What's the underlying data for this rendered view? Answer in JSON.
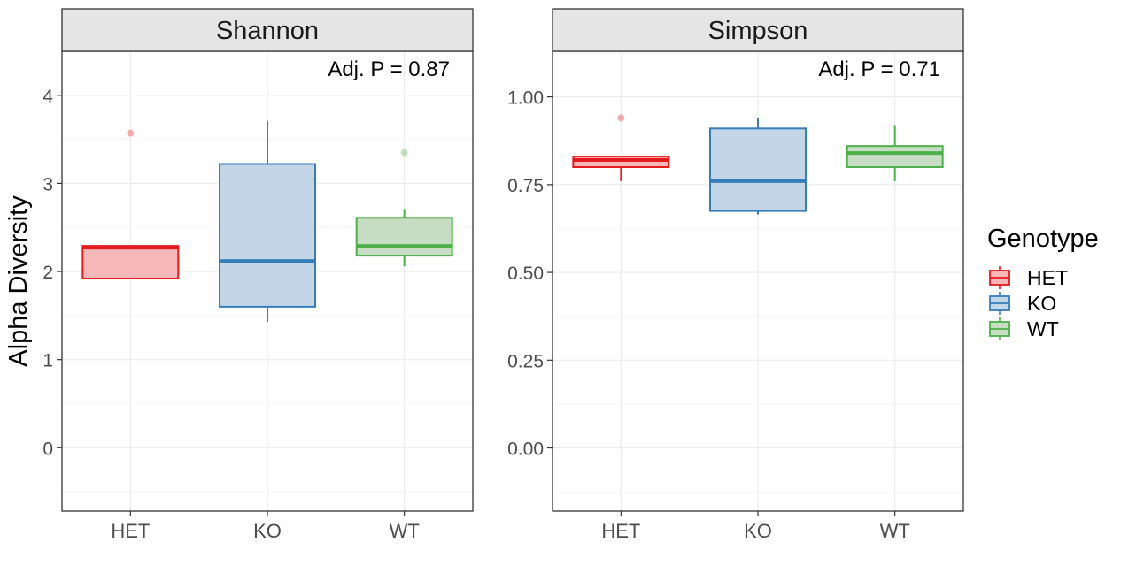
{
  "y_axis_label": "Alpha Diversity",
  "legend": {
    "title": "Genotype",
    "entries": [
      {
        "label": "HET",
        "color": "#E41A1C",
        "fill": "#F6B7B8"
      },
      {
        "label": "KO",
        "color": "#377EB8",
        "fill": "#C3D6E8"
      },
      {
        "label": "WT",
        "color": "#4DAF4A",
        "fill": "#C6DDC3"
      }
    ]
  },
  "chart_data": [
    {
      "type": "box",
      "facet_title": "Shannon",
      "annotation": "Adj. P =  0.87",
      "ylabel": "Alpha Diversity",
      "categories": [
        "HET",
        "KO",
        "WT"
      ],
      "ylim": [
        -0.72,
        4.5
      ],
      "yticks": [
        0,
        1,
        2,
        3,
        4
      ],
      "ytick_labels": [
        "0",
        "1",
        "2",
        "3",
        "4"
      ],
      "grid": true,
      "boxes": [
        {
          "group": "HET",
          "min": 1.92,
          "q1": 1.92,
          "median": 2.27,
          "q3": 2.29,
          "max": 2.29,
          "outliers": [
            3.57
          ]
        },
        {
          "group": "KO",
          "min": 1.43,
          "q1": 1.6,
          "median": 2.12,
          "q3": 3.22,
          "max": 3.71,
          "outliers": []
        },
        {
          "group": "WT",
          "min": 2.06,
          "q1": 2.18,
          "median": 2.29,
          "q3": 2.61,
          "max": 2.71,
          "outliers": [
            3.35
          ]
        }
      ]
    },
    {
      "type": "box",
      "facet_title": "Simpson",
      "annotation": "Adj. P =  0.71",
      "ylabel": "",
      "categories": [
        "HET",
        "KO",
        "WT"
      ],
      "ylim": [
        -0.18,
        1.13
      ],
      "yticks": [
        0.0,
        0.25,
        0.5,
        0.75,
        1.0
      ],
      "ytick_labels": [
        "0.00",
        "0.25",
        "0.50",
        "0.75",
        "1.00"
      ],
      "grid": true,
      "boxes": [
        {
          "group": "HET",
          "min": 0.76,
          "q1": 0.8,
          "median": 0.82,
          "q3": 0.83,
          "max": 0.83,
          "outliers": [
            0.94
          ]
        },
        {
          "group": "KO",
          "min": 0.665,
          "q1": 0.675,
          "median": 0.76,
          "q3": 0.91,
          "max": 0.94,
          "outliers": []
        },
        {
          "group": "WT",
          "min": 0.76,
          "q1": 0.8,
          "median": 0.84,
          "q3": 0.86,
          "max": 0.92,
          "outliers": []
        }
      ]
    }
  ]
}
